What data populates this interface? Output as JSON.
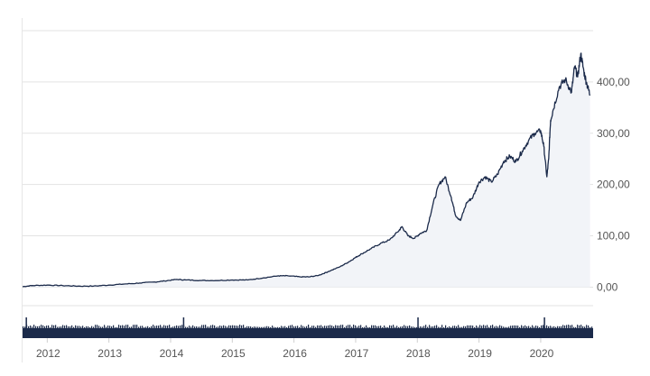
{
  "chart_data": {
    "type": "area",
    "title": "",
    "xlabel": "",
    "ylabel": "",
    "x_tick_labels": [
      "2012",
      "2013",
      "2014",
      "2015",
      "2016",
      "2017",
      "2018",
      "2019",
      "2020"
    ],
    "y_tick_labels": [
      "0,00",
      "100,00",
      "200,00",
      "300,00",
      "400,00"
    ],
    "y_ticks": [
      0,
      100,
      200,
      300,
      400
    ],
    "ylim": [
      -8,
      500
    ],
    "xlim": [
      2011.6,
      2020.85
    ],
    "grid": "horizontal",
    "legend": "none",
    "series": [
      {
        "x": [
          2011.6,
          2011.75,
          2012.0,
          2012.25,
          2012.5,
          2012.75,
          2013.0,
          2013.25,
          2013.5,
          2013.75,
          2013.9,
          2014.1,
          2014.25,
          2014.5,
          2014.75,
          2015.0,
          2015.25,
          2015.5,
          2015.75,
          2015.9,
          2016.1,
          2016.25,
          2016.4,
          2016.55,
          2016.75,
          2016.9,
          2017.0,
          2017.1,
          2017.25,
          2017.4,
          2017.55,
          2017.7,
          2017.75,
          2017.85,
          2017.95,
          2018.05,
          2018.15,
          2018.25,
          2018.35,
          2018.45,
          2018.55,
          2018.62,
          2018.7,
          2018.8,
          2018.9,
          2019.0,
          2019.1,
          2019.2,
          2019.3,
          2019.4,
          2019.5,
          2019.6,
          2019.7,
          2019.8,
          2019.9,
          2020.0,
          2020.05,
          2020.1,
          2020.13,
          2020.16,
          2020.2,
          2020.3,
          2020.4,
          2020.5,
          2020.55,
          2020.6,
          2020.65,
          2020.7,
          2020.75,
          2020.8
        ],
        "y": [
          1,
          3,
          4,
          3,
          2,
          2,
          4,
          6,
          8,
          10,
          12,
          15,
          14,
          13,
          13,
          14,
          14,
          18,
          22,
          22,
          20,
          20,
          23,
          30,
          40,
          50,
          58,
          65,
          75,
          85,
          92,
          110,
          118,
          100,
          95,
          105,
          110,
          160,
          200,
          215,
          175,
          140,
          130,
          165,
          175,
          205,
          215,
          205,
          220,
          245,
          255,
          245,
          265,
          285,
          300,
          305,
          275,
          215,
          250,
          325,
          345,
          390,
          405,
          380,
          430,
          410,
          455,
          420,
          395,
          375
        ],
        "style": "line with light fill",
        "line_color": "#1b2a4a",
        "fill_color": "#f2f4f8"
      }
    ],
    "volume_strip": {
      "bar_color": "#1b2a4a",
      "spikes_at": [
        2011.65,
        2014.2,
        2018.0,
        2020.05
      ]
    }
  }
}
